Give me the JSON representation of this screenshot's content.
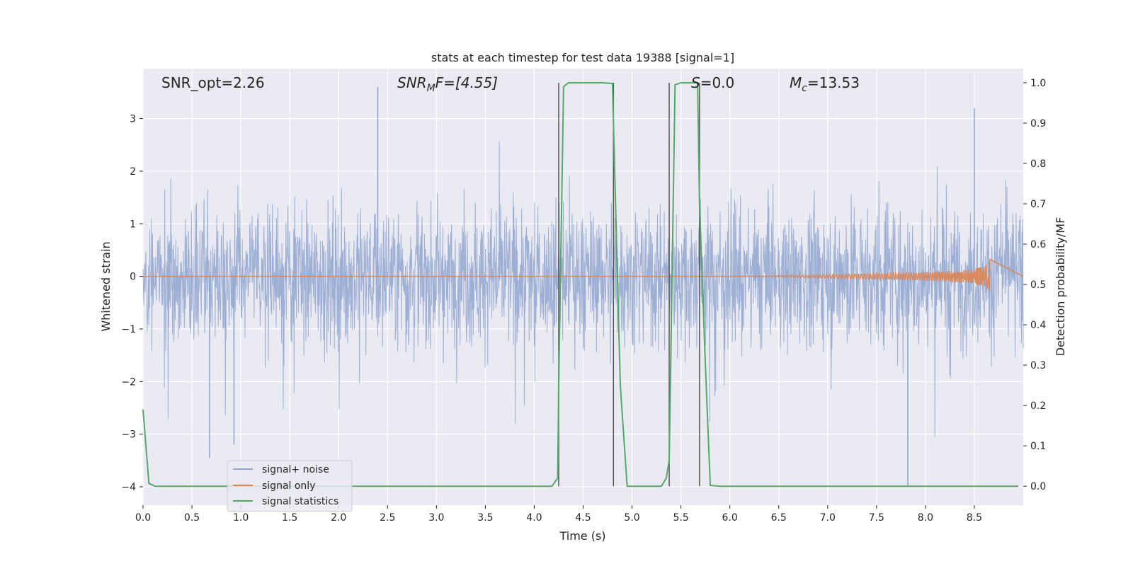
{
  "chart_data": {
    "type": "line",
    "title": "stats at each timestep for test data 19388 [signal=1]",
    "xlabel": "Time (s)",
    "ylabel": "Whitened strain",
    "y2label": "Detection probability/MF",
    "xlim": [
      0.0,
      9.0
    ],
    "ylim": [
      -4.35,
      3.95
    ],
    "y2lim": [
      -0.047,
      1.035
    ],
    "grid": true,
    "legend_position": "lower-left",
    "x_ticks": [
      "0.0",
      "0.5",
      "1.0",
      "1.5",
      "2.0",
      "2.5",
      "3.0",
      "3.5",
      "4.0",
      "4.5",
      "5.0",
      "5.5",
      "6.0",
      "6.5",
      "7.0",
      "7.5",
      "8.0",
      "8.5"
    ],
    "y_ticks": [
      "3",
      "2",
      "1",
      "0",
      "−1",
      "−2",
      "−3",
      "−4"
    ],
    "y2_ticks": [
      "1.0",
      "0.9",
      "0.8",
      "0.7",
      "0.6",
      "0.5",
      "0.4",
      "0.3",
      "0.2",
      "0.1",
      "0.0"
    ],
    "annotations": {
      "snr_opt": "SNR_opt=2.26",
      "snr_mf_main": "SNR",
      "snr_mf_sub": "M",
      "snr_mf_rest": "F=[4.55]",
      "s_main": "S",
      "s_rest": "=0.0",
      "mc_main": "M",
      "mc_sub": "c",
      "mc_rest": "=13.53"
    },
    "series": [
      {
        "name": "signal+ noise",
        "color": "#8fa5cf",
        "note_range": [
          -4.0,
          3.6
        ],
        "notable_spikes": [
          [
            0.68,
            -3.45
          ],
          [
            0.93,
            -3.2
          ],
          [
            2.4,
            3.6
          ],
          [
            7.82,
            -4.0
          ],
          [
            8.5,
            3.2
          ]
        ]
      },
      {
        "name": "signal only",
        "color": "#dd8452",
        "chirp_start": 6.0,
        "chirp_peak_time": 8.66,
        "chirp_peak_amplitude": 0.38
      },
      {
        "name": "signal statistics",
        "color": "#55a868",
        "x": [
          0.0,
          0.06,
          0.12,
          0.5,
          1.0,
          2.0,
          3.0,
          4.0,
          4.18,
          4.24,
          4.25,
          4.3,
          4.35,
          4.5,
          4.7,
          4.8,
          4.83,
          4.88,
          4.95,
          5.0,
          5.3,
          5.35,
          5.38,
          5.44,
          5.5,
          5.67,
          5.69,
          5.75,
          5.8,
          5.9,
          6.5,
          7.0,
          8.0,
          8.95
        ],
        "values": [
          0.19,
          0.007,
          0.0,
          0.0,
          0.0,
          0.0,
          0.0,
          0.0,
          0.0,
          0.02,
          0.25,
          0.99,
          1.0,
          1.0,
          1.0,
          0.998,
          0.71,
          0.25,
          0.0,
          0.0,
          0.0,
          0.02,
          0.065,
          0.995,
          1.0,
          1.0,
          0.7,
          0.3,
          0.002,
          0.0,
          0.0,
          0.0,
          0.0,
          0.0
        ]
      }
    ],
    "vertical_markers": [
      4.25,
      4.81,
      5.38,
      5.69
    ]
  }
}
